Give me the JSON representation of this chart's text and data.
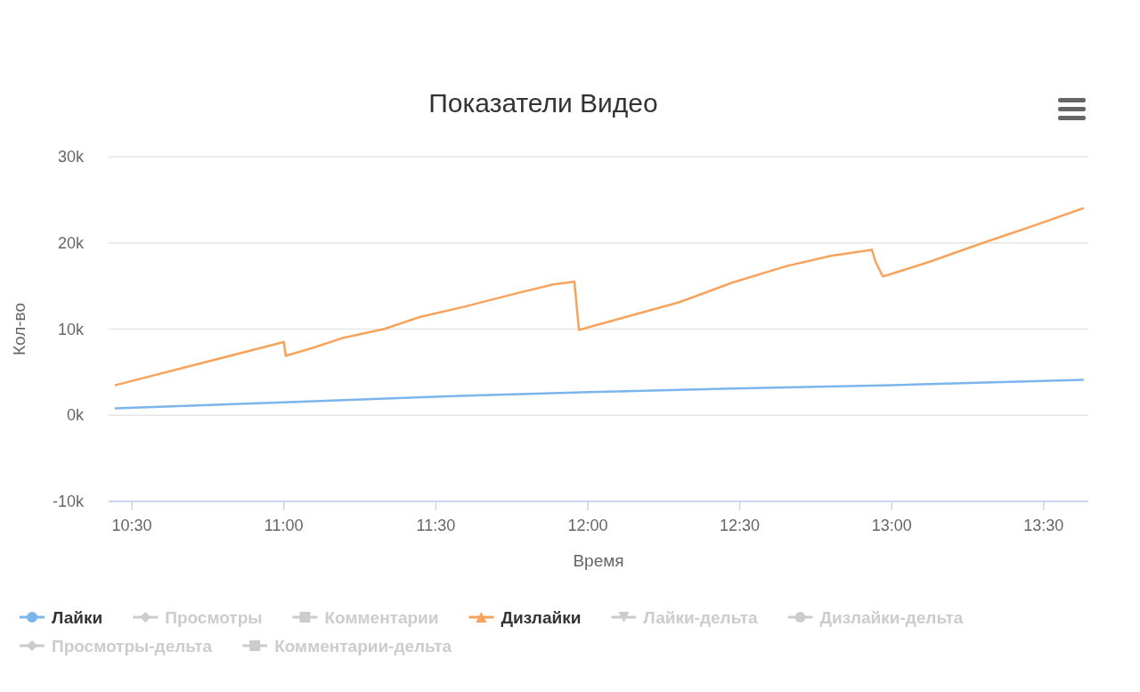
{
  "chart_data": {
    "type": "line",
    "title": "Показатели Видео",
    "xlabel": "Время",
    "ylabel": "Кол-во",
    "xlim": [
      10.4235,
      13.647
    ],
    "xticks": [
      {
        "value": 10.5,
        "label": "10:30"
      },
      {
        "value": 11,
        "label": "11:00"
      },
      {
        "value": 11.5,
        "label": "11:30"
      },
      {
        "value": 12,
        "label": "12:00"
      },
      {
        "value": 12.5,
        "label": "12:30"
      },
      {
        "value": 13,
        "label": "13:00"
      },
      {
        "value": 13.5,
        "label": "13:30"
      }
    ],
    "ylim": [
      -10000,
      30000
    ],
    "yticks": [
      {
        "value": -10000,
        "label": "-10k"
      },
      {
        "value": 0,
        "label": "0k"
      },
      {
        "value": 10000,
        "label": "10k"
      },
      {
        "value": 20000,
        "label": "20k"
      },
      {
        "value": 30000,
        "label": "30k"
      }
    ],
    "grid": "y",
    "legend": "bottom",
    "series": [
      {
        "name": "Лайки",
        "color": "#7cb5ec",
        "x": [
          10.447,
          11.0,
          11.535,
          12.006,
          12.476,
          13.0,
          13.629
        ],
        "values": [
          800,
          1500,
          2200,
          2700,
          3100,
          3500,
          4100
        ]
      },
      {
        "name": "Просмотры",
        "color": "#cccccc"
      },
      {
        "name": "Комментарии",
        "color": "#cccccc"
      },
      {
        "name": "Дизлайки",
        "color": "#f7a35c",
        "x": [
          10.447,
          11.0,
          11.006,
          11.094,
          11.197,
          11.329,
          11.447,
          11.594,
          11.771,
          11.888,
          11.956,
          11.971,
          12.124,
          12.3,
          12.476,
          12.653,
          12.8,
          12.935,
          12.947,
          12.971,
          13.124,
          13.3,
          13.476,
          13.629
        ],
        "values": [
          3500,
          8500,
          6900,
          7800,
          9000,
          10000,
          11400,
          12600,
          14200,
          15200,
          15500,
          9900,
          11400,
          13100,
          15400,
          17300,
          18500,
          19200,
          17800,
          16100,
          17800,
          20000,
          22100,
          24000
        ]
      },
      {
        "name": "Лайки-дельта",
        "color": "#cccccc"
      },
      {
        "name": "Дизлайки-дельта",
        "color": "#cccccc"
      },
      {
        "name": "Просмотры-дельта",
        "color": "#cccccc"
      },
      {
        "name": "Комментарии-дельта",
        "color": "#cccccc"
      }
    ]
  }
}
